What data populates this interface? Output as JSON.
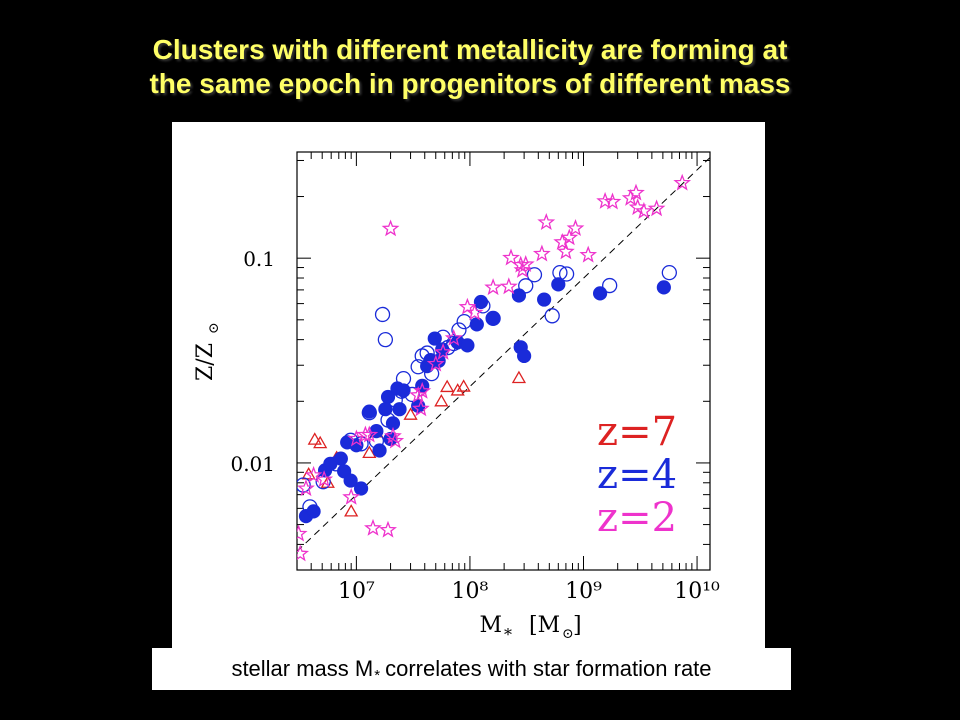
{
  "header": {
    "title_line1": "Clusters with different metallicity are forming at",
    "title_line2": "the same epoch in progenitors of different mass"
  },
  "caption": {
    "text_before": "stellar mass M",
    "subscript": "*",
    "text_after": "correlates with star formation rate"
  },
  "chart_data": {
    "type": "scatter",
    "x_scale": "log",
    "y_scale": "log",
    "xlim": [
      3000000,
      13000000000
    ],
    "ylim": [
      0.003,
      0.33
    ],
    "xticks": [
      10000000,
      100000000,
      1000000000,
      10000000000
    ],
    "xtick_labels": [
      "10⁷",
      "10⁸",
      "10⁹",
      "10¹⁰"
    ],
    "yticks": [
      0.01,
      0.1
    ],
    "ytick_labels": [
      "0.01",
      "0.1"
    ],
    "xlabel": "M",
    "xlabel_sub": "*",
    "xlabel_unit": "[M",
    "xlabel_unit_sub": "⊙",
    "xlabel_unit_close": "]",
    "ylabel": "Z/Z",
    "ylabel_sub": "⊙",
    "grid": false,
    "reference_line": {
      "style": "dashed",
      "x": [
        3000000,
        13000000000
      ],
      "y": [
        0.0037,
        0.31
      ]
    },
    "legend_position": "bottom-right",
    "series": [
      {
        "name": "z=7",
        "color": "#dd2222",
        "marker": "triangle-open",
        "points": [
          [
            3800000,
            0.0088
          ],
          [
            4800000,
            0.0125
          ],
          [
            5600000,
            0.008
          ],
          [
            6700000,
            0.0106
          ],
          [
            9000000,
            0.0058
          ],
          [
            13000000,
            0.0112
          ],
          [
            15000000,
            0.0141
          ],
          [
            30000000,
            0.0172
          ],
          [
            35000000,
            0.019
          ],
          [
            56000000,
            0.02
          ],
          [
            63000000,
            0.0235
          ],
          [
            78000000,
            0.0226
          ],
          [
            88000000,
            0.0236
          ],
          [
            270000000,
            0.026
          ],
          [
            4300000,
            0.013
          ]
        ]
      },
      {
        "name": "z=4",
        "color": "#1a2bd9",
        "marker": "circle",
        "points": [
          [
            3600000,
            0.0055
          ],
          [
            4200000,
            0.0058
          ],
          [
            5300000,
            0.0092
          ],
          [
            5900000,
            0.0099
          ],
          [
            7300000,
            0.0105
          ],
          [
            7800000,
            0.0091
          ],
          [
            8300000,
            0.0126
          ],
          [
            8900000,
            0.0082
          ],
          [
            10000000,
            0.0122
          ],
          [
            11000000,
            0.0075
          ],
          [
            13000000,
            0.0178
          ],
          [
            15000000,
            0.0143
          ],
          [
            16000000,
            0.0115
          ],
          [
            18000000,
            0.0183
          ],
          [
            19000000,
            0.021
          ],
          [
            20000000,
            0.0131
          ],
          [
            21000000,
            0.0156
          ],
          [
            23000000,
            0.0231
          ],
          [
            24000000,
            0.0183
          ],
          [
            26000000,
            0.0226
          ],
          [
            35000000,
            0.019
          ],
          [
            38000000,
            0.0238
          ],
          [
            42000000,
            0.0297
          ],
          [
            45000000,
            0.0318
          ],
          [
            49000000,
            0.0405
          ],
          [
            53000000,
            0.0315
          ],
          [
            57000000,
            0.0358
          ],
          [
            78000000,
            0.0388
          ],
          [
            95000000,
            0.0375
          ],
          [
            115000000,
            0.0475
          ],
          [
            125000000,
            0.0611
          ],
          [
            160000000,
            0.0509
          ],
          [
            270000000,
            0.0657
          ],
          [
            280000000,
            0.0367
          ],
          [
            300000000,
            0.0333
          ],
          [
            450000000,
            0.0628
          ],
          [
            600000000,
            0.0745
          ],
          [
            1400000000,
            0.0673
          ],
          [
            5100000000,
            0.072
          ]
        ]
      },
      {
        "name": "z=4",
        "color": "#1a2bd9",
        "marker": "circle-open",
        "points": [
          [
            3400000,
            0.0078
          ],
          [
            3900000,
            0.0061
          ],
          [
            5100000,
            0.0081
          ],
          [
            6600000,
            0.0099
          ],
          [
            8900000,
            0.0129
          ],
          [
            11000000,
            0.0124
          ],
          [
            13000000,
            0.0176
          ],
          [
            15000000,
            0.0128
          ],
          [
            17000000,
            0.0531
          ],
          [
            18000000,
            0.04
          ],
          [
            19000000,
            0.0162
          ],
          [
            22000000,
            0.0203
          ],
          [
            25000000,
            0.0224
          ],
          [
            26000000,
            0.0258
          ],
          [
            31000000,
            0.0216
          ],
          [
            35000000,
            0.0295
          ],
          [
            38000000,
            0.0333
          ],
          [
            42000000,
            0.0344
          ],
          [
            46000000,
            0.0273
          ],
          [
            58000000,
            0.0411
          ],
          [
            64000000,
            0.0366
          ],
          [
            72000000,
            0.0383
          ],
          [
            80000000,
            0.0446
          ],
          [
            89000000,
            0.049
          ],
          [
            130000000,
            0.0585
          ],
          [
            160000000,
            0.0508
          ],
          [
            310000000,
            0.0733
          ],
          [
            370000000,
            0.083
          ],
          [
            530000000,
            0.0523
          ],
          [
            620000000,
            0.085
          ],
          [
            710000000,
            0.0837
          ],
          [
            1700000000,
            0.0735
          ],
          [
            5700000000,
            0.085
          ]
        ]
      },
      {
        "name": "z=2",
        "color": "#ee33cc",
        "marker": "star-open",
        "points": [
          [
            3100000,
            0.0045
          ],
          [
            3200000,
            0.0036
          ],
          [
            3600000,
            0.0075
          ],
          [
            4200000,
            0.0087
          ],
          [
            5200000,
            0.0083
          ],
          [
            9000000,
            0.0068
          ],
          [
            10000000,
            0.0131
          ],
          [
            12000000,
            0.0137
          ],
          [
            13000000,
            0.0137
          ],
          [
            14000000,
            0.0048
          ],
          [
            19000000,
            0.0047
          ],
          [
            20000000,
            0.1392
          ],
          [
            21000000,
            0.0135
          ],
          [
            22000000,
            0.0128
          ],
          [
            35000000,
            0.0214
          ],
          [
            37000000,
            0.0184
          ],
          [
            38000000,
            0.0224
          ],
          [
            50000000,
            0.0304
          ],
          [
            58000000,
            0.0347
          ],
          [
            72000000,
            0.0406
          ],
          [
            95000000,
            0.0577
          ],
          [
            110000000,
            0.0541
          ],
          [
            160000000,
            0.0719
          ],
          [
            220000000,
            0.0726
          ],
          [
            230000000,
            0.1003
          ],
          [
            280000000,
            0.0926
          ],
          [
            290000000,
            0.0873
          ],
          [
            310000000,
            0.0932
          ],
          [
            430000000,
            0.1049
          ],
          [
            470000000,
            0.1495
          ],
          [
            650000000,
            0.1196
          ],
          [
            700000000,
            0.1075
          ],
          [
            750000000,
            0.1258
          ],
          [
            850000000,
            0.1397
          ],
          [
            1100000000,
            0.1036
          ],
          [
            1550000000,
            0.1895
          ],
          [
            1800000000,
            0.1882
          ],
          [
            2600000000,
            0.1963
          ],
          [
            2900000000,
            0.2082
          ],
          [
            3000000000,
            0.1768
          ],
          [
            3400000000,
            0.1694
          ],
          [
            4400000000,
            0.1745
          ],
          [
            7400000000,
            0.2327
          ]
        ]
      }
    ],
    "legend": [
      {
        "label": "z=7",
        "color": "#dd2222"
      },
      {
        "label": "z=4",
        "color": "#1a2bd9"
      },
      {
        "label": "z=2",
        "color": "#ee33cc"
      }
    ]
  }
}
